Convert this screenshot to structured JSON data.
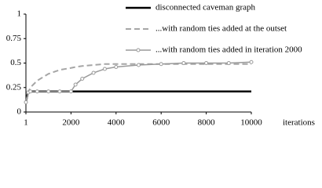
{
  "chart_data": {
    "type": "line",
    "x_label": "iterations",
    "x": [
      1,
      100,
      200,
      500,
      1000,
      1500,
      2000,
      2200,
      2500,
      3000,
      3500,
      4000,
      5000,
      6000,
      7000,
      8000,
      9000,
      10000
    ],
    "series": [
      {
        "name": "disconnected caveman graph",
        "color": "#000000",
        "dashed": false,
        "markers": false,
        "values": [
          0.1,
          0.21,
          0.21,
          0.21,
          0.21,
          0.21,
          0.21,
          0.21,
          0.21,
          0.21,
          0.21,
          0.21,
          0.21,
          0.21,
          0.21,
          0.21,
          0.21,
          0.21
        ]
      },
      {
        "name": "...with random ties added at the outset",
        "color": "#a6a6a6",
        "dashed": true,
        "markers": false,
        "values": [
          0.1,
          0.2,
          0.25,
          0.32,
          0.39,
          0.43,
          0.45,
          0.46,
          0.47,
          0.48,
          0.49,
          0.49,
          0.49,
          0.49,
          0.49,
          0.49,
          0.49,
          0.49
        ]
      },
      {
        "name": "...with random ties added in iteration 2000",
        "color": "#9a9a9a",
        "dashed": false,
        "markers": true,
        "values": [
          0.1,
          0.2,
          0.21,
          0.21,
          0.21,
          0.21,
          0.21,
          0.28,
          0.34,
          0.4,
          0.44,
          0.46,
          0.48,
          0.49,
          0.5,
          0.5,
          0.5,
          0.51
        ]
      }
    ],
    "xlim": [
      1,
      10000
    ],
    "xticks": [
      1,
      2000,
      4000,
      6000,
      8000,
      10000
    ],
    "ylim": [
      0,
      1
    ],
    "yticks": [
      0,
      0.25,
      0.5,
      0.75,
      1
    ],
    "grid": false,
    "legend": "top-right"
  }
}
